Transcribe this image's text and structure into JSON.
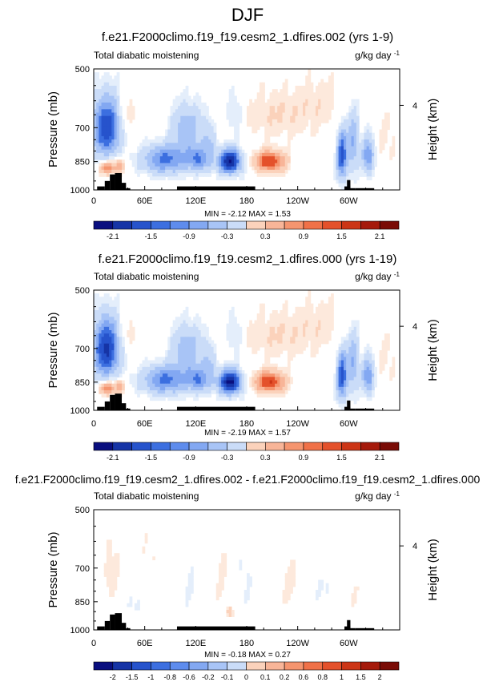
{
  "figure_title": "DJF",
  "chart_data": [
    {
      "type": "heatmap",
      "title": "f.e21.F2000climo.f19_f19.cesm2_1.dfires.002 (yrs 1-9)",
      "left_label": "Total diabatic moistening",
      "units_label": "g/kg day",
      "units_exp": "-1",
      "ylabel": "Pressure (mb)",
      "ylabel_right": "Height (km)",
      "xticks": [
        "0",
        "60E",
        "120E",
        "180",
        "120W",
        "60W"
      ],
      "yticks": [
        "500",
        "700",
        "850",
        "1000"
      ],
      "right_ticks": [
        "4"
      ],
      "stats": "MIN = -2.12   MAX =  1.53",
      "colorbar_labels": [
        "-2.1",
        "-1.5",
        "-0.9",
        "-0.3",
        "0.3",
        "0.9",
        "1.5",
        "2.1"
      ],
      "features": [
        {
          "lon": 15,
          "p": 700,
          "value": -1.8,
          "wlon": 16,
          "wp": 120
        },
        {
          "lon": 16,
          "p": 880,
          "value": 1.2,
          "wlon": 9,
          "wp": 35
        },
        {
          "lon": 30,
          "p": 870,
          "value": 0.8,
          "wlon": 6,
          "wp": 40
        },
        {
          "lon": 40,
          "p": 650,
          "value": 0.3,
          "wlon": 12,
          "wp": 80
        },
        {
          "lon": 85,
          "p": 840,
          "value": -1.3,
          "wlon": 28,
          "wp": 70
        },
        {
          "lon": 110,
          "p": 700,
          "value": -0.8,
          "wlon": 18,
          "wp": 100
        },
        {
          "lon": 122,
          "p": 840,
          "value": -1.0,
          "wlon": 10,
          "wp": 60
        },
        {
          "lon": 135,
          "p": 780,
          "value": -0.6,
          "wlon": 8,
          "wp": 110
        },
        {
          "lon": 160,
          "p": 850,
          "value": -2.1,
          "wlon": 14,
          "wp": 60
        },
        {
          "lon": 165,
          "p": 640,
          "value": -0.4,
          "wlon": 10,
          "wp": 90
        },
        {
          "lon": 207,
          "p": 850,
          "value": 1.5,
          "wlon": 18,
          "wp": 50
        },
        {
          "lon": 215,
          "p": 650,
          "value": 0.3,
          "wlon": 45,
          "wp": 100
        },
        {
          "lon": 270,
          "p": 600,
          "value": 0.2,
          "wlon": 30,
          "wp": 100
        },
        {
          "lon": 292,
          "p": 820,
          "value": -1.6,
          "wlon": 6,
          "wp": 120
        },
        {
          "lon": 305,
          "p": 760,
          "value": -0.9,
          "wlon": 7,
          "wp": 140
        },
        {
          "lon": 323,
          "p": 820,
          "value": -1.2,
          "wlon": 7,
          "wp": 90
        },
        {
          "lon": 345,
          "p": 750,
          "value": 0.2,
          "wlon": 15,
          "wp": 120
        }
      ]
    },
    {
      "type": "heatmap",
      "title": "f.e21.F2000climo.f19_f19.cesm2_1.dfires.000 (yrs 1-19)",
      "left_label": "Total diabatic moistening",
      "units_label": "g/kg day",
      "units_exp": "-1",
      "ylabel": "Pressure (mb)",
      "ylabel_right": "Height (km)",
      "xticks": [
        "0",
        "60E",
        "120E",
        "180",
        "120W",
        "60W"
      ],
      "yticks": [
        "500",
        "700",
        "850",
        "1000"
      ],
      "right_ticks": [
        "4"
      ],
      "stats": "MIN = -2.19   MAX =  1.57",
      "colorbar_labels": [
        "-2.1",
        "-1.5",
        "-0.9",
        "-0.3",
        "0.3",
        "0.9",
        "1.5",
        "2.1"
      ],
      "features": [
        {
          "lon": 15,
          "p": 700,
          "value": -1.9,
          "wlon": 16,
          "wp": 120
        },
        {
          "lon": 16,
          "p": 880,
          "value": 1.2,
          "wlon": 9,
          "wp": 35
        },
        {
          "lon": 30,
          "p": 870,
          "value": 0.8,
          "wlon": 6,
          "wp": 40
        },
        {
          "lon": 40,
          "p": 650,
          "value": 0.3,
          "wlon": 12,
          "wp": 80
        },
        {
          "lon": 85,
          "p": 840,
          "value": -1.3,
          "wlon": 28,
          "wp": 70
        },
        {
          "lon": 110,
          "p": 700,
          "value": -0.8,
          "wlon": 18,
          "wp": 100
        },
        {
          "lon": 122,
          "p": 840,
          "value": -1.0,
          "wlon": 10,
          "wp": 60
        },
        {
          "lon": 135,
          "p": 780,
          "value": -0.6,
          "wlon": 8,
          "wp": 110
        },
        {
          "lon": 160,
          "p": 850,
          "value": -2.2,
          "wlon": 14,
          "wp": 60
        },
        {
          "lon": 165,
          "p": 640,
          "value": -0.4,
          "wlon": 10,
          "wp": 90
        },
        {
          "lon": 207,
          "p": 850,
          "value": 1.55,
          "wlon": 18,
          "wp": 50
        },
        {
          "lon": 215,
          "p": 650,
          "value": 0.3,
          "wlon": 45,
          "wp": 100
        },
        {
          "lon": 270,
          "p": 600,
          "value": 0.2,
          "wlon": 30,
          "wp": 100
        },
        {
          "lon": 292,
          "p": 820,
          "value": -1.6,
          "wlon": 6,
          "wp": 120
        },
        {
          "lon": 305,
          "p": 760,
          "value": -0.9,
          "wlon": 7,
          "wp": 140
        },
        {
          "lon": 323,
          "p": 820,
          "value": -1.2,
          "wlon": 7,
          "wp": 90
        },
        {
          "lon": 345,
          "p": 750,
          "value": 0.2,
          "wlon": 15,
          "wp": 120
        }
      ]
    },
    {
      "type": "heatmap",
      "title": "f.e21.F2000climo.f19_f19.cesm2_1.dfires.002 - f.e21.F2000climo.f19_f19.cesm2_1.dfires.000",
      "left_label": "Total diabatic moistening",
      "units_label": "g/kg day",
      "units_exp": "-1",
      "ylabel": "Pressure (mb)",
      "ylabel_right": "Height (km)",
      "xticks": [
        "0",
        "60E",
        "120E",
        "180",
        "120W",
        "60W"
      ],
      "yticks": [
        "500",
        "700",
        "850",
        "1000"
      ],
      "right_ticks": [
        "4"
      ],
      "stats": "MIN = -0.18   MAX =  0.27",
      "colorbar_labels": [
        "-2",
        "-1.5",
        "-1",
        "-0.8",
        "-0.6",
        "-0.2",
        "-0.1",
        "0",
        "0.1",
        "0.2",
        "0.6",
        "0.8",
        "1",
        "1.5",
        "2"
      ],
      "features": [
        {
          "lon": 20,
          "p": 700,
          "value": 0.08,
          "wlon": 10,
          "wp": 150
        },
        {
          "lon": 45,
          "p": 850,
          "value": -0.06,
          "wlon": 12,
          "wp": 80
        },
        {
          "lon": 70,
          "p": 650,
          "value": 0.05,
          "wlon": 15,
          "wp": 150
        },
        {
          "lon": 115,
          "p": 800,
          "value": -0.05,
          "wlon": 15,
          "wp": 150
        },
        {
          "lon": 150,
          "p": 700,
          "value": 0.06,
          "wlon": 10,
          "wp": 200
        },
        {
          "lon": 160,
          "p": 900,
          "value": 0.15,
          "wlon": 4,
          "wp": 30
        },
        {
          "lon": 180,
          "p": 750,
          "value": -0.06,
          "wlon": 10,
          "wp": 150
        },
        {
          "lon": 230,
          "p": 760,
          "value": 0.07,
          "wlon": 15,
          "wp": 120
        },
        {
          "lon": 270,
          "p": 800,
          "value": -0.05,
          "wlon": 12,
          "wp": 150
        },
        {
          "lon": 305,
          "p": 820,
          "value": 0.05,
          "wlon": 8,
          "wp": 100
        },
        {
          "lon": 330,
          "p": 700,
          "value": 0.05,
          "wlon": 10,
          "wp": 150
        }
      ]
    }
  ],
  "colors": {
    "negative": [
      "#0a0f7f",
      "#1634a6",
      "#2653cc",
      "#3c6fe0",
      "#5e8ced",
      "#83a8f2",
      "#a8c4f6",
      "#cadcf8",
      "#e4eefb"
    ],
    "positive": [
      "#fde9dc",
      "#fbd2bb",
      "#f8b598",
      "#f5956f",
      "#f07148",
      "#e4512b",
      "#cc3516",
      "#a51a0b",
      "#7a0c06"
    ],
    "topography": "#000000"
  }
}
